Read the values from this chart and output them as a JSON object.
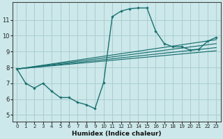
{
  "xlabel": "Humidex (Indice chaleur)",
  "bg_color": "#cce8ea",
  "grid_color": "#aacdd0",
  "line_color": "#1a7070",
  "xlim": [
    -0.5,
    23.5
  ],
  "ylim": [
    4.6,
    12.1
  ],
  "yticks": [
    5,
    6,
    7,
    8,
    9,
    10,
    11
  ],
  "xticks": [
    0,
    1,
    2,
    3,
    4,
    5,
    6,
    7,
    8,
    9,
    10,
    11,
    12,
    13,
    14,
    15,
    16,
    17,
    18,
    19,
    20,
    21,
    22,
    23
  ],
  "curve_x": [
    0,
    1,
    2,
    3,
    4,
    5,
    6,
    7,
    8,
    9,
    10,
    11,
    12,
    13,
    14,
    15,
    16,
    17,
    18,
    19,
    20,
    21,
    22,
    23
  ],
  "curve_y": [
    7.9,
    7.0,
    6.7,
    7.0,
    6.5,
    6.1,
    6.1,
    5.8,
    5.65,
    5.4,
    7.05,
    11.2,
    11.55,
    11.7,
    11.75,
    11.75,
    10.3,
    9.5,
    9.3,
    9.3,
    9.1,
    9.15,
    9.65,
    9.9
  ],
  "lines": [
    {
      "x": [
        0,
        23
      ],
      "y": [
        7.9,
        9.05
      ]
    },
    {
      "x": [
        0,
        23
      ],
      "y": [
        7.9,
        9.25
      ]
    },
    {
      "x": [
        0,
        23
      ],
      "y": [
        7.9,
        9.5
      ]
    },
    {
      "x": [
        0,
        23
      ],
      "y": [
        7.9,
        9.75
      ]
    }
  ]
}
